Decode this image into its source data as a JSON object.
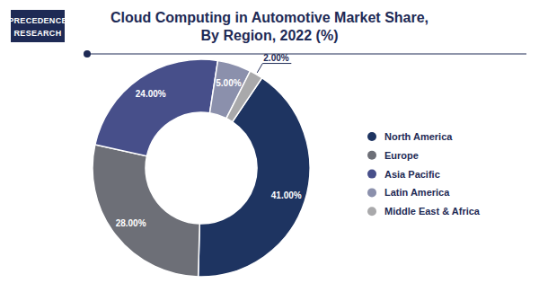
{
  "chart_data": {
    "type": "pie",
    "title": "Cloud Computing in Automotive Market Share,\nBy Region, 2022 (%)",
    "annotations": [
      "PRECEDENCE",
      "RESEARCH"
    ],
    "categories": [
      "North America",
      "Europe",
      "Asia Pacific",
      "Latin America",
      "Middle East & Africa"
    ],
    "values": [
      41,
      28,
      24,
      5,
      2
    ],
    "value_labels": [
      "41.00%",
      "28.00%",
      "24.00%",
      "5.00%",
      "2.00%"
    ],
    "colors": [
      "#1e3461",
      "#6d6f77",
      "#474f8a",
      "#8b90ac",
      "#a9a9ab"
    ],
    "data_labels": true,
    "legend": "right"
  }
}
